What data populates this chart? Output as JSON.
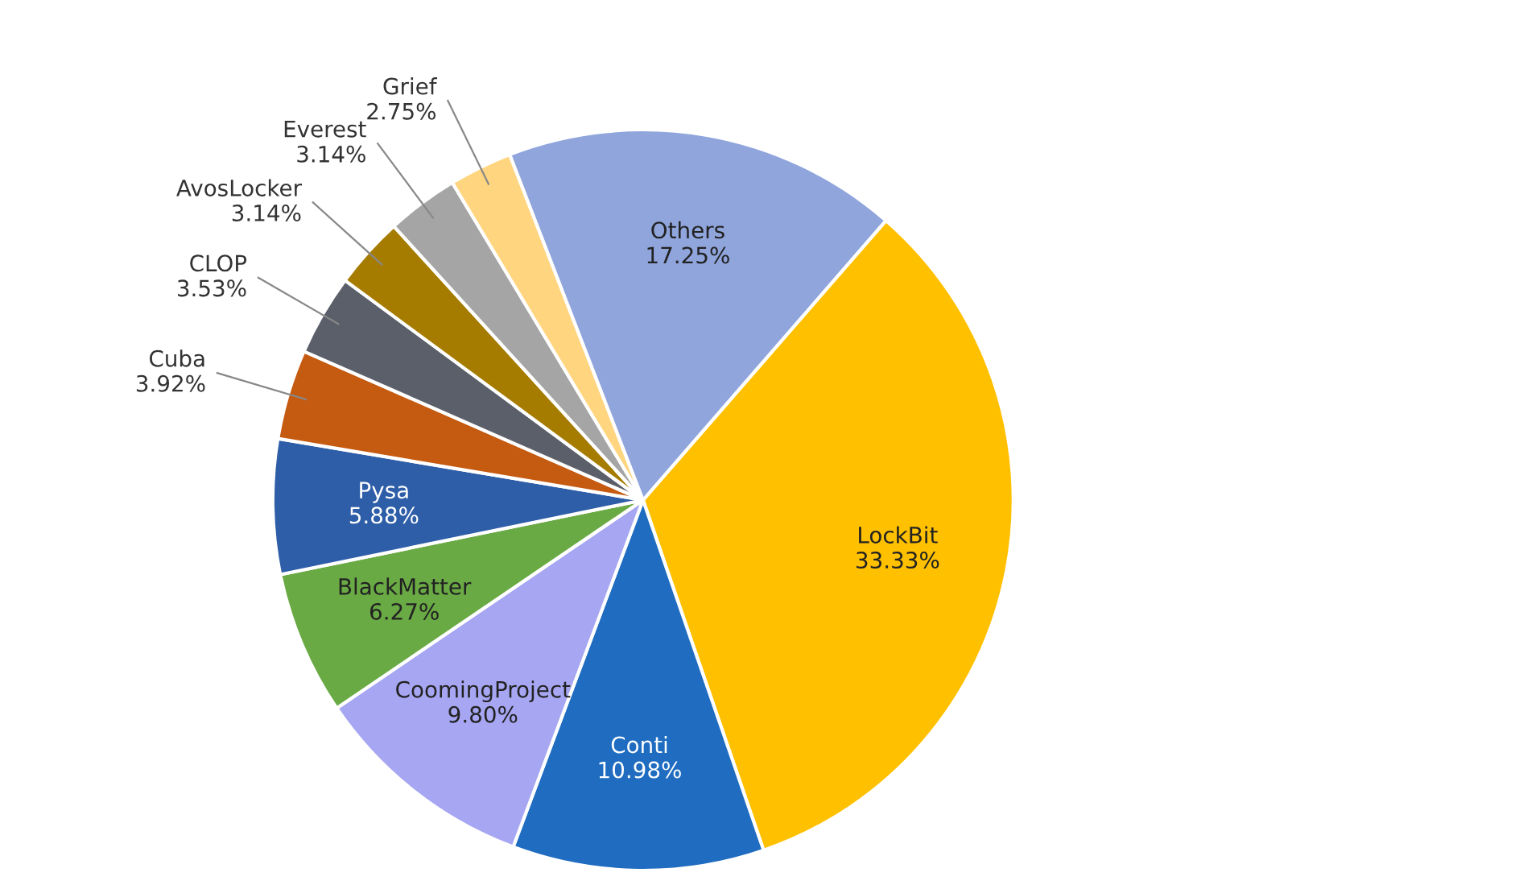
{
  "chart_data": {
    "type": "pie",
    "categories": [
      "LockBit",
      "Conti",
      "CoomingProject",
      "BlackMatter",
      "Pysa",
      "Cuba",
      "CLOP",
      "AvosLocker",
      "Everest",
      "Grief",
      "Others"
    ],
    "values": [
      33.33,
      10.98,
      9.8,
      6.27,
      5.88,
      3.92,
      3.53,
      3.14,
      3.14,
      2.75,
      17.25
    ],
    "value_labels": [
      "33.33%",
      "10.98%",
      "9.80%",
      "6.27%",
      "5.88%",
      "3.92%",
      "3.53%",
      "3.14%",
      "3.14%",
      "2.75%",
      "17.25%"
    ],
    "colors": [
      "#ffc000",
      "#1f6cc0",
      "#a6a6f2",
      "#6aaa45",
      "#2e5ea8",
      "#c55a11",
      "#5a5f6a",
      "#a67c00",
      "#a5a5a5",
      "#ffd580",
      "#8fa5dc"
    ]
  }
}
